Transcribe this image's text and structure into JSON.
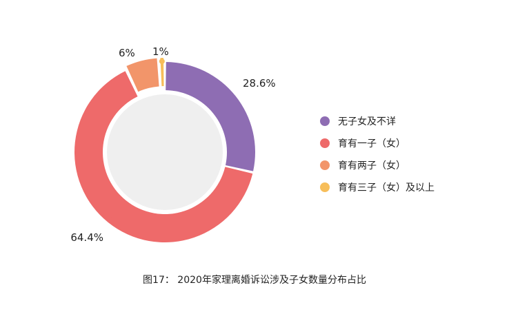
{
  "chart_data": {
    "type": "pie",
    "donut": true,
    "categories": [
      "无子女及不详",
      "育有一子（女）",
      "育有两子（女）",
      "育有三子（女）及以上"
    ],
    "values": [
      28.6,
      64.4,
      6,
      1
    ],
    "data_labels": [
      "28.6%",
      "64.4%",
      "6%",
      "1%"
    ],
    "colors": [
      "#8E6DB3",
      "#EE6A6A",
      "#F2956A",
      "#F7BE5A"
    ],
    "center_color": "#EFEFEF",
    "legend_position": "right",
    "title": "图17： 2020年家理离婚诉讼涉及子女数量分布占比"
  }
}
